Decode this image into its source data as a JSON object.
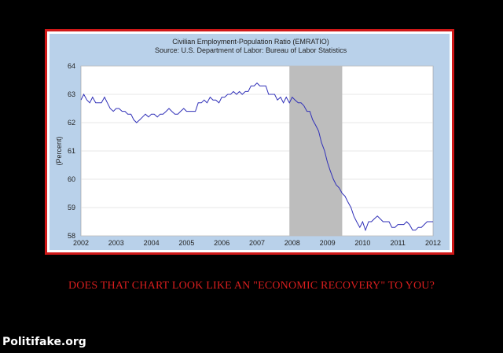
{
  "caption": "DOES THAT CHART LOOK LIKE AN \"ECONOMIC RECOVERY\" TO YOU?",
  "watermark": "Politifake.org",
  "colors": {
    "frame": "#d01818",
    "panel": "#b9d1ea",
    "line": "#3030b8",
    "recession": "#bdbdbd",
    "caption": "#d81e1e"
  },
  "chart_data": {
    "type": "line",
    "title": "Civilian Employment-Population Ratio (EMRATIO)",
    "subtitle": "Source: U.S. Department of Labor: Bureau of Labor Statistics",
    "ylabel": "(Percent)",
    "xlabel": "",
    "xlim": [
      2002,
      2012
    ],
    "ylim": [
      58,
      64
    ],
    "x_ticks": [
      "2002",
      "2003",
      "2004",
      "2005",
      "2006",
      "2007",
      "2008",
      "2009",
      "2010",
      "2011",
      "2012"
    ],
    "y_ticks": [
      "58",
      "59",
      "60",
      "61",
      "62",
      "63",
      "64"
    ],
    "grid": true,
    "shaded_region": {
      "label": "recession",
      "x_start": 2007.92,
      "x_end": 2009.42
    },
    "series": [
      {
        "name": "",
        "x": [
          2002.0,
          2002.08,
          2002.17,
          2002.25,
          2002.33,
          2002.42,
          2002.5,
          2002.58,
          2002.67,
          2002.75,
          2002.83,
          2002.92,
          2003.0,
          2003.08,
          2003.17,
          2003.25,
          2003.33,
          2003.42,
          2003.5,
          2003.58,
          2003.67,
          2003.75,
          2003.83,
          2003.92,
          2004.0,
          2004.08,
          2004.17,
          2004.25,
          2004.33,
          2004.42,
          2004.5,
          2004.58,
          2004.67,
          2004.75,
          2004.83,
          2004.92,
          2005.0,
          2005.08,
          2005.17,
          2005.25,
          2005.33,
          2005.42,
          2005.5,
          2005.58,
          2005.67,
          2005.75,
          2005.83,
          2005.92,
          2006.0,
          2006.08,
          2006.17,
          2006.25,
          2006.33,
          2006.42,
          2006.5,
          2006.58,
          2006.67,
          2006.75,
          2006.83,
          2006.92,
          2007.0,
          2007.08,
          2007.17,
          2007.25,
          2007.33,
          2007.42,
          2007.5,
          2007.58,
          2007.67,
          2007.75,
          2007.83,
          2007.92,
          2008.0,
          2008.08,
          2008.17,
          2008.25,
          2008.33,
          2008.42,
          2008.5,
          2008.58,
          2008.67,
          2008.75,
          2008.83,
          2008.92,
          2009.0,
          2009.08,
          2009.17,
          2009.25,
          2009.33,
          2009.42,
          2009.5,
          2009.58,
          2009.67,
          2009.75,
          2009.83,
          2009.92,
          2010.0,
          2010.08,
          2010.17,
          2010.25,
          2010.33,
          2010.42,
          2010.5,
          2010.58,
          2010.67,
          2010.75,
          2010.83,
          2010.92,
          2011.0,
          2011.08,
          2011.17,
          2011.25,
          2011.33,
          2011.42,
          2011.5,
          2011.58,
          2011.67,
          2011.75,
          2011.83,
          2011.92,
          2012.0
        ],
        "values": [
          62.8,
          63.0,
          62.8,
          62.7,
          62.9,
          62.7,
          62.7,
          62.7,
          62.9,
          62.7,
          62.5,
          62.4,
          62.5,
          62.5,
          62.4,
          62.4,
          62.3,
          62.3,
          62.1,
          62.0,
          62.1,
          62.2,
          62.3,
          62.2,
          62.3,
          62.3,
          62.2,
          62.3,
          62.3,
          62.4,
          62.5,
          62.4,
          62.3,
          62.3,
          62.4,
          62.5,
          62.4,
          62.4,
          62.4,
          62.4,
          62.7,
          62.7,
          62.8,
          62.7,
          62.9,
          62.8,
          62.8,
          62.7,
          62.9,
          62.9,
          63.0,
          63.0,
          63.1,
          63.0,
          63.1,
          63.0,
          63.1,
          63.1,
          63.3,
          63.3,
          63.4,
          63.3,
          63.3,
          63.3,
          63.0,
          63.0,
          63.0,
          62.8,
          62.9,
          62.7,
          62.9,
          62.7,
          62.9,
          62.8,
          62.7,
          62.7,
          62.6,
          62.4,
          62.4,
          62.1,
          61.9,
          61.7,
          61.3,
          61.0,
          60.6,
          60.3,
          60.0,
          59.8,
          59.7,
          59.5,
          59.4,
          59.2,
          59.0,
          58.7,
          58.5,
          58.3,
          58.5,
          58.2,
          58.5,
          58.5,
          58.6,
          58.7,
          58.6,
          58.5,
          58.5,
          58.5,
          58.3,
          58.3,
          58.4,
          58.4,
          58.4,
          58.5,
          58.4,
          58.2,
          58.2,
          58.3,
          58.3,
          58.4,
          58.5,
          58.5,
          58.5
        ]
      }
    ]
  }
}
